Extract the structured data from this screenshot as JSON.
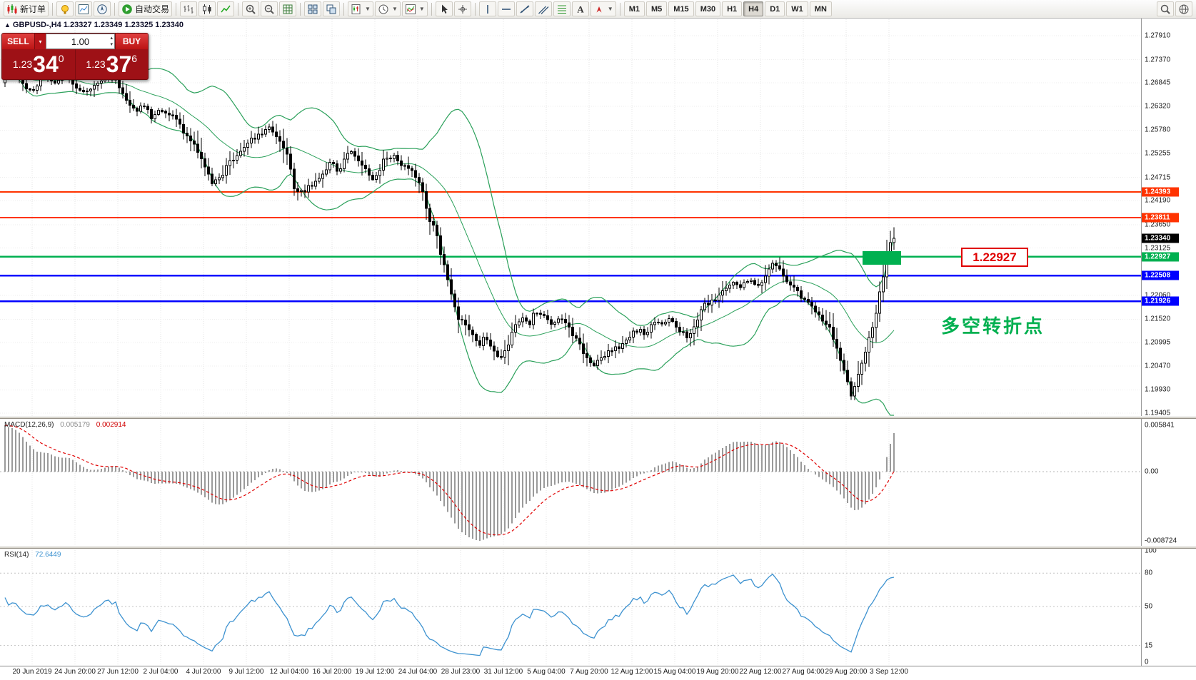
{
  "toolbar": {
    "groups": [
      {
        "buttons": [
          {
            "name": "new-order",
            "icon": "new-order",
            "label": "新订单"
          }
        ]
      },
      {
        "buttons": [
          {
            "name": "metaeditor",
            "icon": "bulb"
          },
          {
            "name": "market-watch",
            "icon": "mw"
          },
          {
            "name": "navigator",
            "icon": "nav"
          }
        ]
      },
      {
        "buttons": [
          {
            "name": "autotrading",
            "icon": "play",
            "label": "自动交易"
          }
        ]
      },
      {
        "buttons": [
          {
            "name": "chart-bars",
            "icon": "bars"
          },
          {
            "name": "chart-candles",
            "icon": "candles"
          },
          {
            "name": "chart-line",
            "icon": "line"
          }
        ]
      },
      {
        "buttons": [
          {
            "name": "zoom-in",
            "icon": "zoom-in"
          },
          {
            "name": "zoom-out",
            "icon": "zoom-out"
          },
          {
            "name": "chart-grid",
            "icon": "grid"
          }
        ]
      },
      {
        "buttons": [
          {
            "name": "tile-windows",
            "icon": "tile"
          },
          {
            "name": "cascade-windows",
            "icon": "cascade"
          }
        ]
      },
      {
        "buttons": [
          {
            "name": "new-chart",
            "icon": "new-chart",
            "dropdown": true
          },
          {
            "name": "profiles",
            "icon": "clock",
            "dropdown": true
          },
          {
            "name": "indicators",
            "icon": "indicators",
            "dropdown": true
          }
        ]
      },
      {
        "buttons": [
          {
            "name": "cursor",
            "icon": "cursor"
          },
          {
            "name": "crosshair",
            "icon": "crosshair"
          }
        ]
      },
      {
        "buttons": [
          {
            "name": "vertical-line",
            "icon": "vline"
          },
          {
            "name": "horizontal-line",
            "icon": "hline"
          },
          {
            "name": "trend-line",
            "icon": "tline"
          },
          {
            "name": "equidistant-channel",
            "icon": "channel"
          },
          {
            "name": "fibonacci",
            "icon": "fibo"
          },
          {
            "name": "text-tool",
            "icon": "text"
          },
          {
            "name": "arrows-tool",
            "icon": "arrow",
            "dropdown": true
          }
        ]
      }
    ],
    "timeframes": [
      {
        "label": "M1"
      },
      {
        "label": "M5"
      },
      {
        "label": "M15"
      },
      {
        "label": "M30"
      },
      {
        "label": "H1"
      },
      {
        "label": "H4",
        "active": true
      },
      {
        "label": "D1"
      },
      {
        "label": "W1"
      },
      {
        "label": "MN"
      }
    ],
    "right_buttons": [
      {
        "name": "search",
        "icon": "search"
      },
      {
        "name": "community",
        "icon": "globe"
      }
    ]
  },
  "quote_panel": {
    "sell_label": "SELL",
    "buy_label": "BUY",
    "volume": "1.00",
    "bid_small": "1.23",
    "bid_big": "34",
    "bid_sup": "0",
    "ask_small": "1.23",
    "ask_big": "37",
    "ask_sup": "6"
  },
  "chart": {
    "symbol_info": "GBPUSD-,H4  1.23327 1.23349 1.23325 1.23340",
    "current_price": 1.2334,
    "annotation": "多空转折点",
    "callout": "1.22927",
    "colors": {
      "up": "#ffffff",
      "down": "#000000",
      "wick": "#000000",
      "band": "#2aa05a",
      "orange": "#ff3300",
      "green": "#00b050",
      "blue": "#0000ff",
      "grid": "#e4e4e4",
      "macd_hist": "#9a9a9a",
      "macd_signal": "#e00000",
      "rsi": "#3d92d0"
    },
    "hlines": [
      {
        "price": 1.24393,
        "color": "#ff3300",
        "width": 2
      },
      {
        "price": 1.23811,
        "color": "#ff3300",
        "width": 2
      },
      {
        "price": 1.22927,
        "color": "#00b050",
        "width": 2.5
      },
      {
        "price": 1.22508,
        "color": "#0000ff",
        "width": 2.5
      },
      {
        "price": 1.21926,
        "color": "#0000ff",
        "width": 2.5
      }
    ],
    "axis_prices": [
      1.2791,
      1.2737,
      1.26845,
      1.2632,
      1.2578,
      1.25255,
      1.24715,
      1.2419,
      1.2365,
      1.23125,
      1.2206,
      1.2152,
      1.20995,
      1.2047,
      1.1993,
      1.19405
    ]
  },
  "chart_data": {
    "type": "candlestick",
    "symbol": "GBPUSD",
    "timeframe": "H4",
    "last_quote": {
      "open": 1.23327,
      "high": 1.23349,
      "low": 1.23325,
      "close": 1.2334
    },
    "y_axis": {
      "top": 1.2791,
      "bottom": 1.19405
    },
    "key_levels": {
      "resistance": [
        1.24393,
        1.23811
      ],
      "pivot": 1.22927,
      "support": [
        1.22508,
        1.21926
      ]
    },
    "indicators": [
      {
        "name": "Bollinger Bands",
        "color": "#2aa05a"
      },
      {
        "name": "MACD",
        "params": "12,26,9",
        "values": [
          0.005179,
          0.002914
        ]
      },
      {
        "name": "RSI",
        "params": "14",
        "value": 72.6449
      }
    ],
    "price_path": [
      [
        5,
        1.269
      ],
      [
        18,
        1.2722
      ],
      [
        30,
        1.268
      ],
      [
        45,
        1.2665
      ],
      [
        60,
        1.27
      ],
      [
        75,
        1.2685
      ],
      [
        90,
        1.2702
      ],
      [
        105,
        1.268
      ],
      [
        120,
        1.2665
      ],
      [
        135,
        1.2688
      ],
      [
        150,
        1.27
      ],
      [
        162,
        1.2692
      ],
      [
        175,
        1.2655
      ],
      [
        188,
        1.262
      ],
      [
        200,
        1.2638
      ],
      [
        212,
        1.261
      ],
      [
        225,
        1.2628
      ],
      [
        238,
        1.2615
      ],
      [
        250,
        1.2595
      ],
      [
        262,
        1.2565
      ],
      [
        275,
        1.2535
      ],
      [
        288,
        1.249
      ],
      [
        298,
        1.2452
      ],
      [
        310,
        1.2478
      ],
      [
        322,
        1.2508
      ],
      [
        335,
        1.2528
      ],
      [
        350,
        1.2552
      ],
      [
        365,
        1.2572
      ],
      [
        380,
        1.2585
      ],
      [
        392,
        1.255
      ],
      [
        403,
        1.252
      ],
      [
        414,
        1.2432
      ],
      [
        425,
        1.2442
      ],
      [
        438,
        1.2455
      ],
      [
        452,
        1.2478
      ],
      [
        463,
        1.2508
      ],
      [
        474,
        1.2482
      ],
      [
        486,
        1.2528
      ],
      [
        497,
        1.2522
      ],
      [
        510,
        1.2495
      ],
      [
        523,
        1.2465
      ],
      [
        537,
        1.2508
      ],
      [
        552,
        1.252
      ],
      [
        565,
        1.2495
      ],
      [
        578,
        1.2482
      ],
      [
        590,
        1.245
      ],
      [
        600,
        1.2382
      ],
      [
        610,
        1.235
      ],
      [
        620,
        1.2282
      ],
      [
        630,
        1.2222
      ],
      [
        640,
        1.2162
      ],
      [
        650,
        1.214
      ],
      [
        660,
        1.2128
      ],
      [
        670,
        1.2092
      ],
      [
        680,
        1.2118
      ],
      [
        690,
        1.2082
      ],
      [
        700,
        1.206
      ],
      [
        710,
        1.2092
      ],
      [
        720,
        1.213
      ],
      [
        730,
        1.2158
      ],
      [
        740,
        1.214
      ],
      [
        750,
        1.2168
      ],
      [
        762,
        1.2158
      ],
      [
        774,
        1.214
      ],
      [
        786,
        1.2152
      ],
      [
        798,
        1.2128
      ],
      [
        810,
        1.2098
      ],
      [
        822,
        1.2062
      ],
      [
        832,
        1.2042
      ],
      [
        844,
        1.207
      ],
      [
        856,
        1.2078
      ],
      [
        868,
        1.2092
      ],
      [
        880,
        1.211
      ],
      [
        892,
        1.2128
      ],
      [
        904,
        1.2118
      ],
      [
        916,
        1.2148
      ],
      [
        928,
        1.214
      ],
      [
        940,
        1.2152
      ],
      [
        952,
        1.2128
      ],
      [
        964,
        1.2105
      ],
      [
        976,
        1.2152
      ],
      [
        988,
        1.2185
      ],
      [
        1000,
        1.2192
      ],
      [
        1012,
        1.2218
      ],
      [
        1024,
        1.2235
      ],
      [
        1036,
        1.2228
      ],
      [
        1048,
        1.2242
      ],
      [
        1060,
        1.2222
      ],
      [
        1072,
        1.2252
      ],
      [
        1082,
        1.228
      ],
      [
        1092,
        1.2262
      ],
      [
        1102,
        1.2232
      ],
      [
        1112,
        1.2222
      ],
      [
        1122,
        1.2202
      ],
      [
        1132,
        1.2192
      ],
      [
        1142,
        1.2172
      ],
      [
        1152,
        1.215
      ],
      [
        1162,
        1.213
      ],
      [
        1172,
        1.2082
      ],
      [
        1182,
        1.2042
      ],
      [
        1192,
        1.1982
      ],
      [
        1200,
        1.2012
      ],
      [
        1208,
        1.2058
      ],
      [
        1216,
        1.2105
      ],
      [
        1222,
        1.2135
      ],
      [
        1228,
        1.2175
      ],
      [
        1234,
        1.2225
      ],
      [
        1240,
        1.2282
      ],
      [
        1245,
        1.2322
      ],
      [
        1250,
        1.2334
      ]
    ]
  },
  "macd_panel": {
    "title": "MACD(12,26,9)",
    "value1": "0.005179",
    "value2": "0.002914",
    "axis": [
      {
        "text": "0.005841",
        "v": 0.005841
      },
      {
        "text": "0.00",
        "v": 0
      },
      {
        "text": "-0.008724",
        "v": -0.008724
      }
    ]
  },
  "rsi_panel": {
    "title": "RSI(14)",
    "value": "72.6449",
    "axis": [
      {
        "text": "100",
        "v": 100
      },
      {
        "text": "80",
        "v": 80
      },
      {
        "text": "50",
        "v": 50
      },
      {
        "text": "15",
        "v": 15
      },
      {
        "text": "0",
        "v": 0
      }
    ],
    "levels": [
      80,
      50,
      15
    ]
  },
  "time_axis": {
    "labels": [
      "20 Jun 2019",
      "24 Jun 20:00",
      "27 Jun 12:00",
      "2 Jul 04:00",
      "4 Jul 20:00",
      "9 Jul 12:00",
      "12 Jul 04:00",
      "16 Jul 20:00",
      "19 Jul 12:00",
      "24 Jul 04:00",
      "28 Jul 23:00",
      "31 Jul 12:00",
      "5 Aug 04:00",
      "7 Aug 20:00",
      "12 Aug 12:00",
      "15 Aug 04:00",
      "19 Aug 20:00",
      "22 Aug 12:00",
      "27 Aug 04:00",
      "29 Aug 20:00",
      "3 Sep 12:00"
    ]
  }
}
